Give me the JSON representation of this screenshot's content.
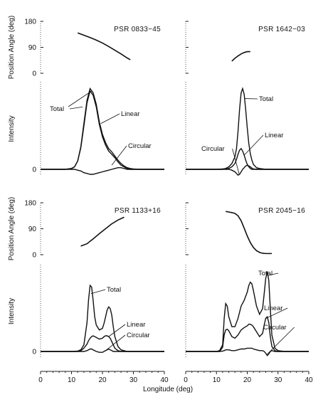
{
  "figure": {
    "xlabel": "Longitude (deg)",
    "pa_ylabel": "Position Angle (deg)",
    "int_ylabel": "Intensity",
    "x_ticks": [
      "0",
      "10",
      "20",
      "30",
      "40"
    ],
    "pa_ticks": [
      "0",
      "90",
      "180"
    ],
    "int_ticks": [
      "0"
    ]
  },
  "chart_data": [
    {
      "type": "line",
      "title": "PSR 0833−45",
      "xlim": [
        0,
        40
      ],
      "pa": {
        "ylim": [
          0,
          180
        ],
        "x": [
          12,
          14,
          16,
          18,
          20,
          22,
          24,
          26,
          28,
          29
        ],
        "y": [
          140,
          132,
          124,
          115,
          105,
          93,
          80,
          67,
          53,
          47
        ]
      },
      "x": [
        0,
        2,
        4,
        6,
        8,
        10,
        11,
        12,
        13,
        14,
        15,
        16,
        17,
        18,
        19,
        20,
        21,
        22,
        23,
        24,
        25,
        26,
        27,
        28,
        29,
        30,
        32,
        34,
        36,
        40
      ],
      "series": [
        {
          "name": "Total",
          "values": [
            0,
            0,
            0,
            0,
            0,
            0.01,
            0.03,
            0.1,
            0.27,
            0.55,
            0.83,
            0.97,
            0.92,
            0.78,
            0.57,
            0.42,
            0.32,
            0.25,
            0.21,
            0.16,
            0.11,
            0.07,
            0.04,
            0.02,
            0.01,
            0.005,
            0,
            0,
            0,
            0
          ]
        },
        {
          "name": "Linear",
          "values": [
            0,
            0,
            0,
            0,
            0,
            0.01,
            0.03,
            0.1,
            0.26,
            0.52,
            0.8,
            0.94,
            0.89,
            0.75,
            0.54,
            0.39,
            0.29,
            0.22,
            0.18,
            0.14,
            0.09,
            0.05,
            0.03,
            0.01,
            0,
            0,
            0,
            0,
            0,
            0
          ]
        },
        {
          "name": "Circular",
          "values": [
            0,
            0,
            0,
            0,
            0,
            0,
            0,
            -0.01,
            -0.02,
            -0.04,
            -0.05,
            -0.06,
            -0.06,
            -0.05,
            -0.04,
            -0.03,
            -0.02,
            -0.01,
            0,
            0.01,
            0.02,
            0.02,
            0.01,
            0,
            0,
            0,
            0,
            0,
            0,
            0
          ]
        }
      ],
      "ylim": [
        -0.1,
        1.05
      ],
      "labels": [
        {
          "series": "Total",
          "text": "Total"
        },
        {
          "series": "Linear",
          "text": "Linear"
        },
        {
          "series": "Circular",
          "text": "Circular"
        }
      ]
    },
    {
      "type": "line",
      "title": "PSR 1642−03",
      "xlim": [
        0,
        40
      ],
      "pa": {
        "ylim": [
          0,
          180
        ],
        "x": [
          15,
          16,
          17,
          18,
          19,
          20,
          21
        ],
        "y": [
          42,
          52,
          60,
          67,
          72,
          75,
          75
        ]
      },
      "x": [
        0,
        4,
        8,
        10,
        12,
        13,
        14,
        15,
        16,
        16.5,
        17,
        17.5,
        18,
        18.5,
        19,
        19.5,
        20,
        20.5,
        21,
        21.5,
        22,
        23,
        24,
        26,
        30,
        36,
        40
      ],
      "series": [
        {
          "name": "Total",
          "values": [
            0,
            0,
            0,
            0,
            0.005,
            0.01,
            0.03,
            0.07,
            0.15,
            0.25,
            0.45,
            0.72,
            0.92,
            0.97,
            0.9,
            0.72,
            0.5,
            0.31,
            0.19,
            0.11,
            0.06,
            0.02,
            0.01,
            0,
            0,
            0,
            0
          ]
        },
        {
          "name": "Linear",
          "values": [
            0,
            0,
            0,
            0,
            0,
            0.005,
            0.01,
            0.03,
            0.07,
            0.12,
            0.18,
            0.23,
            0.25,
            0.22,
            0.17,
            0.11,
            0.06,
            0.03,
            0.01,
            0,
            0,
            0,
            0,
            0,
            0,
            0,
            0
          ]
        },
        {
          "name": "Circular",
          "values": [
            0,
            0,
            0,
            0,
            0,
            0,
            0,
            -0.01,
            -0.03,
            -0.05,
            -0.07,
            -0.06,
            -0.03,
            0,
            0.02,
            0.04,
            0.05,
            0.04,
            0.03,
            0.015,
            0.005,
            0,
            0,
            0,
            0,
            0,
            0
          ]
        }
      ],
      "ylim": [
        -0.1,
        1.05
      ],
      "labels": [
        {
          "series": "Total",
          "text": "Total"
        },
        {
          "series": "Linear",
          "text": "Linear"
        },
        {
          "series": "Circular",
          "text": "Circular"
        }
      ]
    },
    {
      "type": "line",
      "title": "PSR 1133+16",
      "xlim": [
        0,
        40
      ],
      "pa": {
        "ylim": [
          0,
          180
        ],
        "x": [
          13,
          15,
          17,
          19,
          21,
          23,
          25,
          27
        ],
        "y": [
          30,
          38,
          55,
          73,
          90,
          107,
          120,
          130
        ]
      },
      "x": [
        0,
        5,
        8,
        10,
        12,
        13,
        14,
        15,
        15.5,
        16,
        16.5,
        17,
        17.5,
        18,
        19,
        20,
        20.5,
        21,
        21.5,
        22,
        22.5,
        23,
        23.5,
        24,
        25,
        26,
        28,
        32,
        40
      ],
      "series": [
        {
          "name": "Total",
          "values": [
            0,
            0,
            0,
            0,
            0.005,
            0.02,
            0.08,
            0.35,
            0.62,
            0.8,
            0.78,
            0.62,
            0.42,
            0.32,
            0.26,
            0.28,
            0.34,
            0.42,
            0.5,
            0.54,
            0.52,
            0.44,
            0.3,
            0.18,
            0.06,
            0.02,
            0,
            0,
            0
          ]
        },
        {
          "name": "Linear",
          "values": [
            0,
            0,
            0,
            0,
            0,
            0.01,
            0.04,
            0.09,
            0.13,
            0.16,
            0.18,
            0.19,
            0.18,
            0.17,
            0.15,
            0.16,
            0.18,
            0.19,
            0.19,
            0.18,
            0.16,
            0.12,
            0.08,
            0.04,
            0.01,
            0,
            0,
            0,
            0
          ]
        },
        {
          "name": "Circular",
          "values": [
            0,
            0,
            0,
            0,
            0,
            0,
            0,
            0.01,
            0.02,
            0.03,
            0.03,
            0.02,
            0.01,
            0,
            -0.01,
            -0.01,
            0,
            0.01,
            0.02,
            0.03,
            0.02,
            0.01,
            0,
            0,
            0,
            0,
            0,
            0,
            0
          ]
        }
      ],
      "ylim": [
        -0.1,
        1.05
      ],
      "labels": [
        {
          "series": "Total",
          "text": "Total"
        },
        {
          "series": "Linear",
          "text": "Linear"
        },
        {
          "series": "Circular",
          "text": "Circular"
        }
      ]
    },
    {
      "type": "line",
      "title": "PSR 2045−16",
      "xlim": [
        0,
        40
      ],
      "pa": {
        "ylim": [
          0,
          180
        ],
        "x": [
          13,
          14,
          15,
          16,
          17,
          18,
          19,
          20,
          21,
          22,
          23,
          24,
          25,
          26,
          27,
          28
        ],
        "y": [
          150,
          148,
          146,
          143,
          135,
          118,
          92,
          65,
          42,
          25,
          14,
          8,
          5,
          4,
          4,
          4
        ]
      },
      "x": [
        0,
        5,
        8,
        10,
        11,
        12,
        12.5,
        13,
        13.5,
        14,
        15,
        16,
        17,
        18,
        19,
        20,
        20.5,
        21,
        21.5,
        22,
        23,
        24,
        25,
        25.5,
        26,
        26.5,
        27,
        27.5,
        28,
        29,
        30,
        32,
        40
      ],
      "series": [
        {
          "name": "Total",
          "values": [
            0,
            0,
            0,
            0,
            0.01,
            0.08,
            0.4,
            0.58,
            0.55,
            0.42,
            0.3,
            0.3,
            0.4,
            0.55,
            0.62,
            0.72,
            0.8,
            0.84,
            0.82,
            0.74,
            0.55,
            0.45,
            0.52,
            0.7,
            0.88,
            0.97,
            0.86,
            0.52,
            0.2,
            0.04,
            0.01,
            0,
            0
          ]
        },
        {
          "name": "Linear",
          "values": [
            0,
            0,
            0,
            0,
            0,
            0.05,
            0.2,
            0.26,
            0.27,
            0.25,
            0.18,
            0.16,
            0.2,
            0.26,
            0.29,
            0.31,
            0.33,
            0.33,
            0.32,
            0.3,
            0.24,
            0.18,
            0.22,
            0.32,
            0.4,
            0.42,
            0.35,
            0.18,
            0.06,
            0.01,
            0,
            0,
            0
          ]
        },
        {
          "name": "Circular",
          "values": [
            0,
            0,
            0,
            0,
            0,
            0.005,
            0.01,
            0.02,
            0.02,
            0.02,
            0.01,
            0.01,
            0.02,
            0.03,
            0.03,
            0.04,
            0.04,
            0.04,
            0.04,
            0.03,
            0.02,
            0.01,
            0.01,
            0,
            -0.02,
            -0.05,
            -0.03,
            0,
            0.01,
            0,
            0,
            0,
            0
          ]
        }
      ],
      "ylim": [
        -0.1,
        1.05
      ],
      "labels": [
        {
          "series": "Total",
          "text": "Total"
        },
        {
          "series": "Linear",
          "text": "Linear"
        },
        {
          "series": "Circular",
          "text": "Circular"
        }
      ]
    }
  ]
}
